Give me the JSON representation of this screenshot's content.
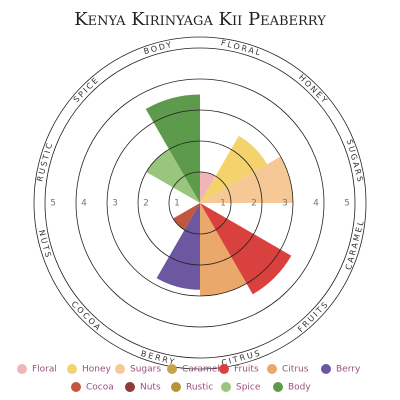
{
  "chart_data": {
    "type": "polar-area",
    "title": "Kenya Kirinyaga Kii Peaberry",
    "categories": [
      "Floral",
      "Honey",
      "Sugars",
      "Caramel",
      "Fruits",
      "Citrus",
      "Berry",
      "Cocoa",
      "Nuts",
      "Rustic",
      "Spice",
      "Body"
    ],
    "values": [
      1,
      2.5,
      3,
      0,
      3.4,
      3,
      2.8,
      1,
      0,
      0,
      2,
      3.5
    ],
    "colors": [
      "#f2b5b7",
      "#f4d26c",
      "#f6c896",
      "#c9a24c",
      "#d9413f",
      "#eaa86a",
      "#6c57a1",
      "#c0573e",
      "#8c3b3a",
      "#b6953c",
      "#99c57c",
      "#5e9a4b"
    ],
    "rlim": [
      0,
      5
    ],
    "rticks": [
      1,
      2,
      3,
      4,
      5
    ],
    "legend": "bottom"
  }
}
